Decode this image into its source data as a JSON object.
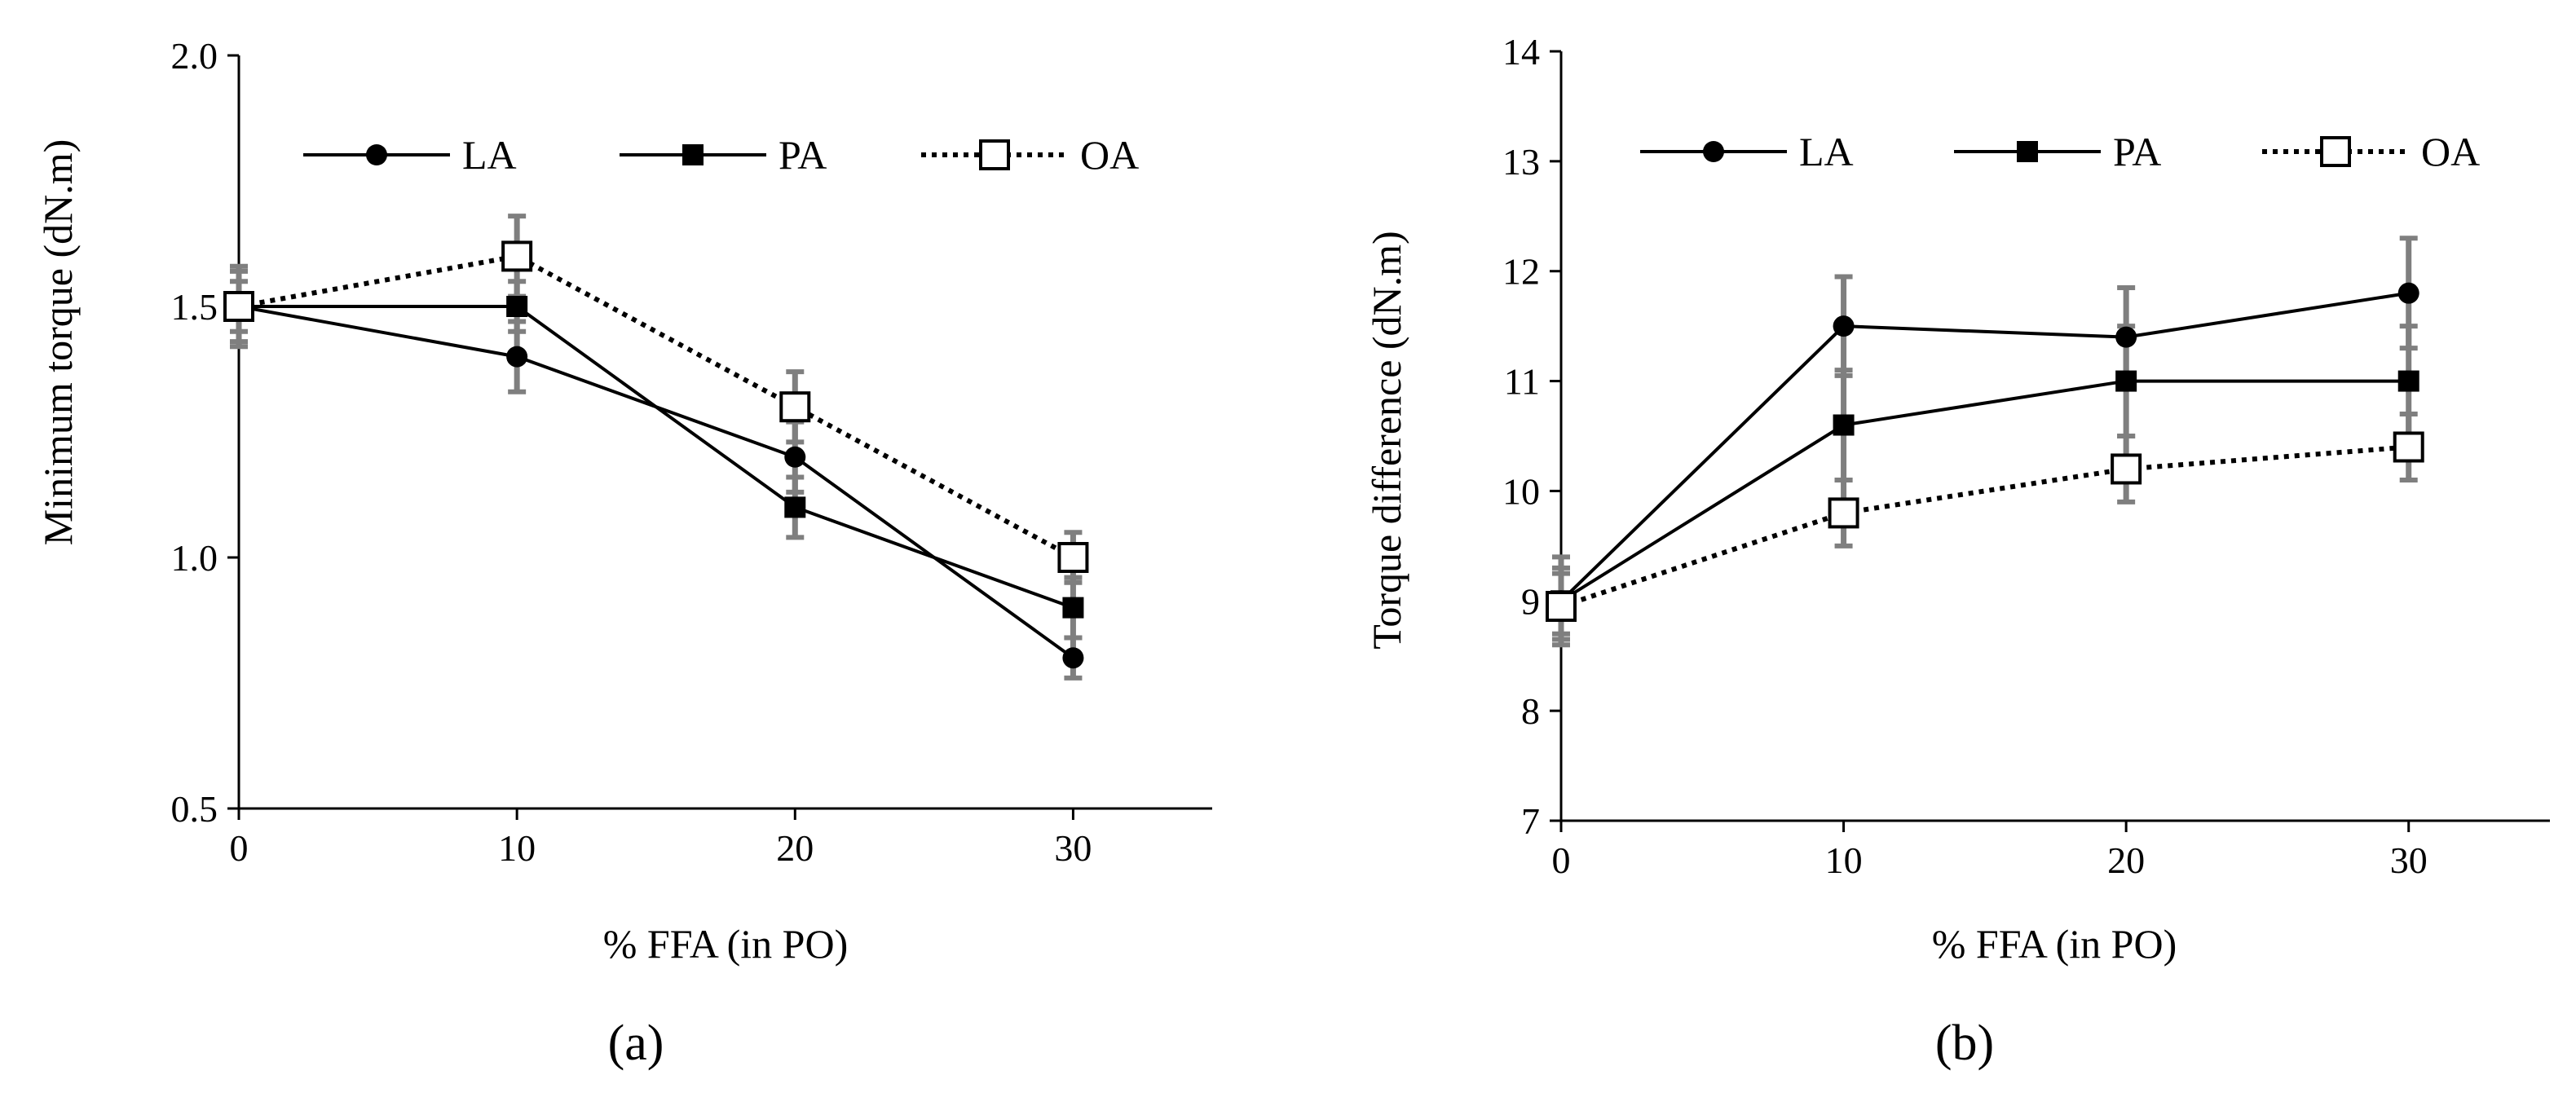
{
  "chart_data": [
    {
      "type": "line",
      "panel_label": "(a)",
      "xlabel": "% FFA (in PO)",
      "ylabel": "Minimum torque (dN.m)",
      "xlim": [
        0,
        35
      ],
      "ylim": [
        0.5,
        2.0
      ],
      "x_ticks": [
        0,
        10,
        20,
        30
      ],
      "y_ticks": [
        0.5,
        1.0,
        1.5,
        2.0
      ],
      "x_tick_labels": [
        "0",
        "10",
        "20",
        "30"
      ],
      "y_tick_labels": [
        "0.5",
        "1.0",
        "1.5",
        "2.0"
      ],
      "legend_placement": "top",
      "series": [
        {
          "name": "LA",
          "marker": "circle",
          "line": "solid",
          "x": [
            0,
            10,
            20,
            30
          ],
          "values": [
            1.5,
            1.4,
            1.2,
            0.8
          ],
          "error": [
            0.07,
            0.07,
            0.07,
            0.04
          ]
        },
        {
          "name": "PA",
          "marker": "square",
          "line": "solid",
          "x": [
            0,
            10,
            20,
            30
          ],
          "values": [
            1.5,
            1.5,
            1.1,
            0.9
          ],
          "error": [
            0.05,
            0.05,
            0.06,
            0.06
          ]
        },
        {
          "name": "OA",
          "marker": "open-square",
          "line": "dotted",
          "x": [
            0,
            10,
            20,
            30
          ],
          "values": [
            1.5,
            1.6,
            1.3,
            1.0
          ],
          "error": [
            0.08,
            0.08,
            0.07,
            0.05
          ]
        }
      ]
    },
    {
      "type": "line",
      "panel_label": "(b)",
      "xlabel": "% FFA (in PO)",
      "ylabel": "Torque difference  (dN.m)",
      "xlim": [
        0,
        35
      ],
      "ylim": [
        7,
        14
      ],
      "x_ticks": [
        0,
        10,
        20,
        30
      ],
      "y_ticks": [
        7,
        8,
        9,
        10,
        11,
        12,
        13,
        14
      ],
      "x_tick_labels": [
        "0",
        "10",
        "20",
        "30"
      ],
      "y_tick_labels": [
        "7",
        "8",
        "9",
        "10",
        "11",
        "12",
        "13",
        "14"
      ],
      "legend_placement": "top",
      "series": [
        {
          "name": "LA",
          "marker": "circle",
          "line": "solid",
          "x": [
            0,
            10,
            20,
            30
          ],
          "values": [
            9.0,
            11.5,
            11.4,
            11.8
          ],
          "error": [
            0.4,
            0.45,
            0.45,
            0.5
          ]
        },
        {
          "name": "PA",
          "marker": "square",
          "line": "solid",
          "x": [
            0,
            10,
            20,
            30
          ],
          "values": [
            9.0,
            10.6,
            11.0,
            11.0
          ],
          "error": [
            0.3,
            0.5,
            0.5,
            0.5
          ]
        },
        {
          "name": "OA",
          "marker": "open-square",
          "line": "dotted",
          "x": [
            0,
            10,
            20,
            30
          ],
          "values": [
            8.95,
            9.8,
            10.2,
            10.4
          ],
          "error": [
            0.3,
            0.3,
            0.3,
            0.3
          ]
        }
      ]
    }
  ]
}
